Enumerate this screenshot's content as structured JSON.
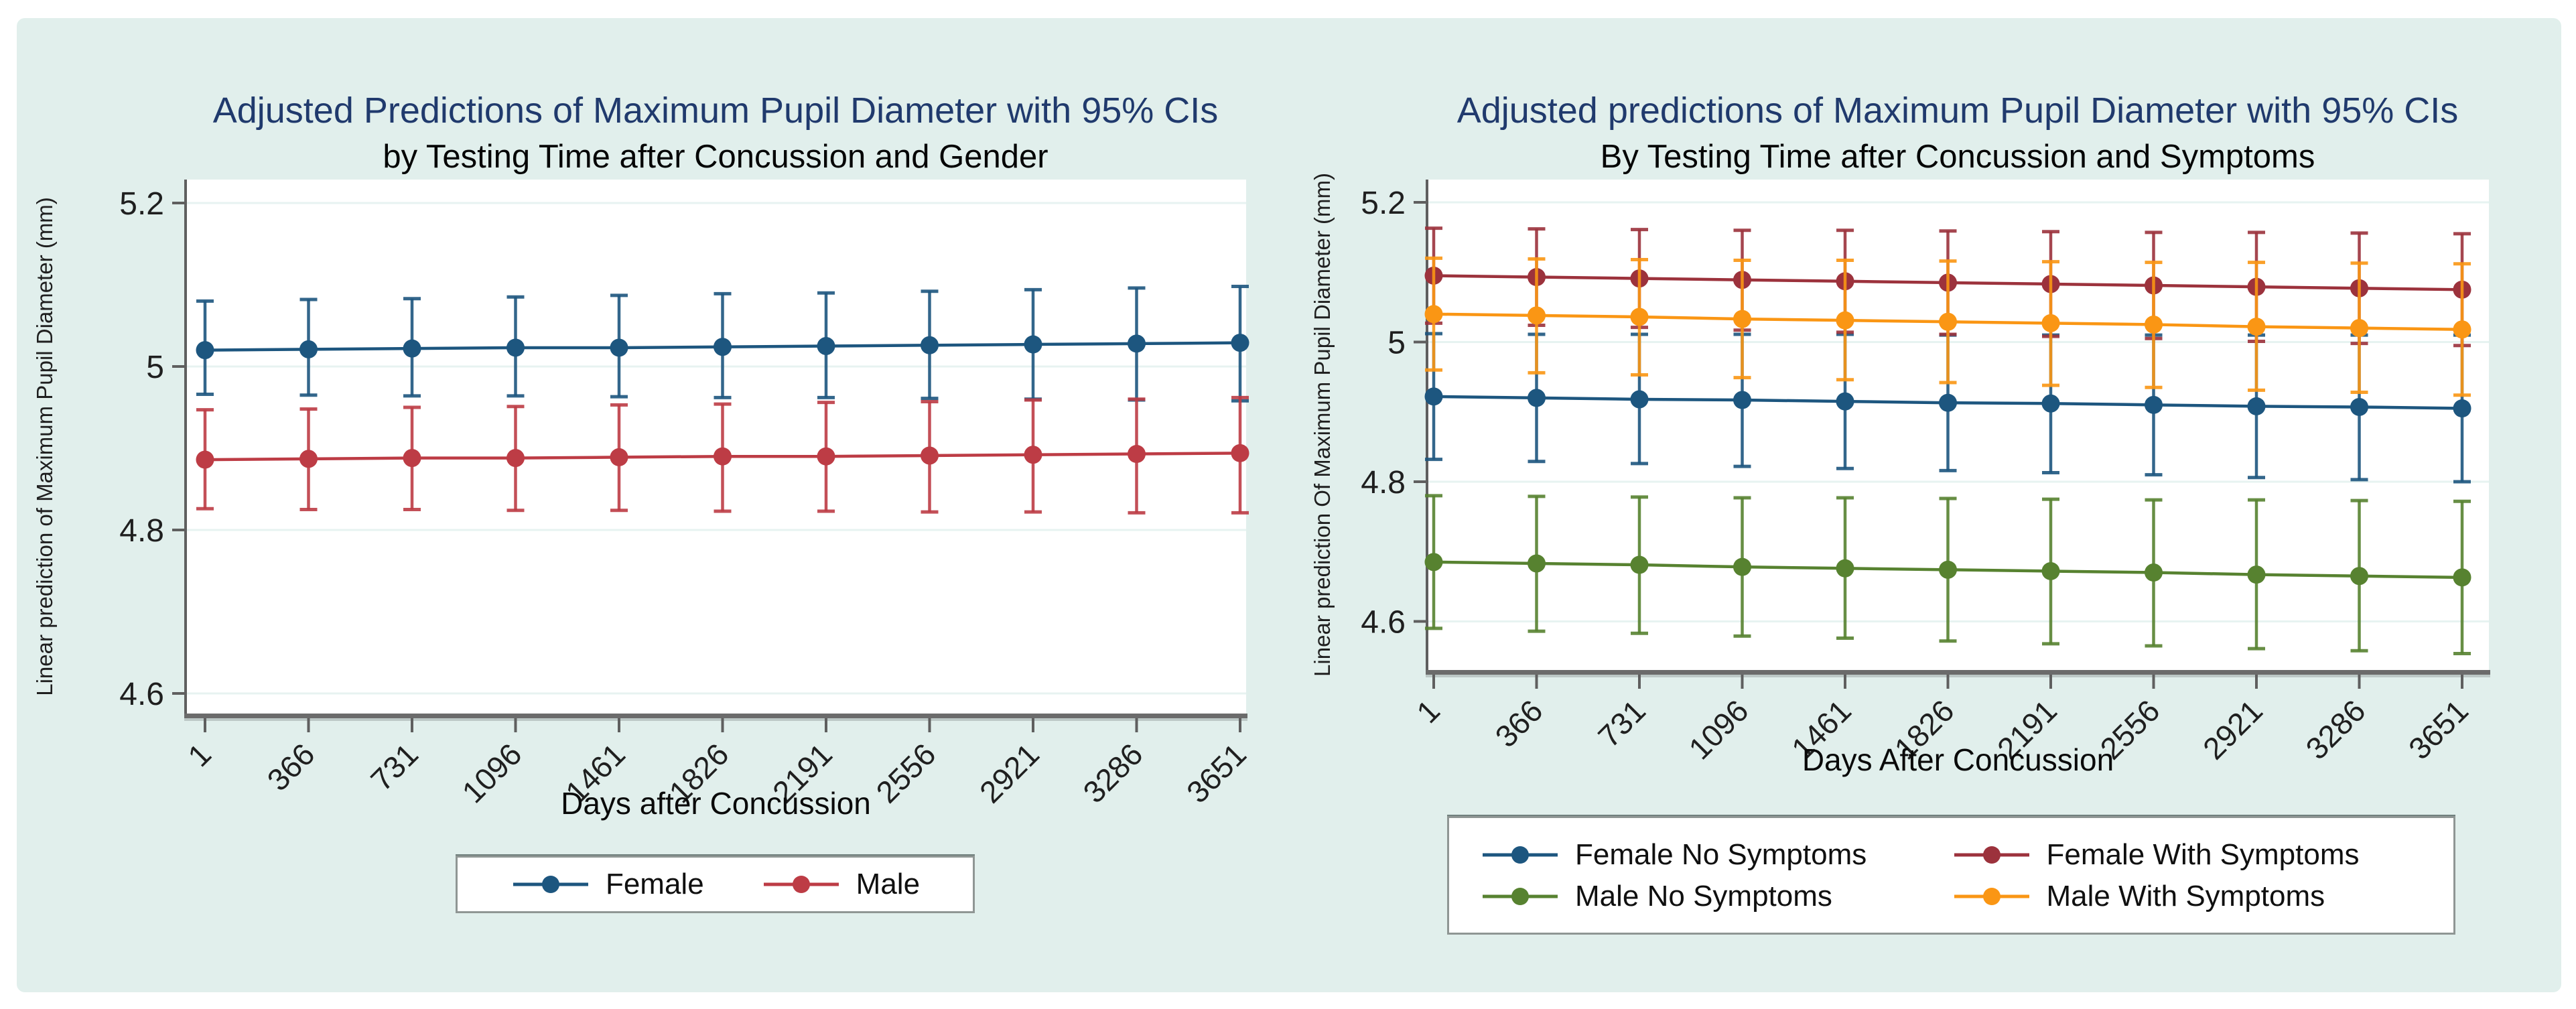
{
  "page": {
    "background": "#ffffff",
    "panel_color": "#e1efec"
  },
  "chart_data": [
    {
      "type": "line",
      "title": "Adjusted Predictions of Maximum Pupil Diameter with 95% CIs",
      "subtitle": "by Testing Time after Concussion and Gender",
      "xlabel": "Days after Concussion",
      "ylabel": "Linear prediction of Maximum Pupil Diameter (mm)",
      "x": [
        1,
        366,
        731,
        1096,
        1461,
        1826,
        2191,
        2556,
        2921,
        3286,
        3651
      ],
      "ylim": [
        4.575,
        5.229
      ],
      "yticks": [
        {
          "v": 5.2,
          "label": "5.2"
        },
        {
          "v": 5.0,
          "label": "5"
        },
        {
          "v": 4.8,
          "label": "4.8"
        },
        {
          "v": 4.6,
          "label": "4.6"
        }
      ],
      "grid": true,
      "legend_position": "bottom-center",
      "error_bars": "95% CI",
      "series": [
        {
          "name": "Female",
          "color": "#1d567f",
          "values": [
            5.02,
            5.021,
            5.022,
            5.023,
            5.023,
            5.024,
            5.025,
            5.026,
            5.027,
            5.028,
            5.029
          ],
          "ci_lower": [
            4.966,
            4.965,
            4.964,
            4.964,
            4.963,
            4.962,
            4.962,
            4.961,
            4.96,
            4.959,
            4.958
          ],
          "ci_upper": [
            5.08,
            5.082,
            5.083,
            5.085,
            5.087,
            5.089,
            5.09,
            5.092,
            5.094,
            5.096,
            5.098
          ]
        },
        {
          "name": "Male",
          "color": "#bd3c45",
          "values": [
            4.886,
            4.887,
            4.888,
            4.888,
            4.889,
            4.89,
            4.89,
            4.891,
            4.892,
            4.893,
            4.894
          ],
          "ci_lower": [
            4.826,
            4.825,
            4.825,
            4.824,
            4.824,
            4.823,
            4.823,
            4.822,
            4.822,
            4.821,
            4.821
          ],
          "ci_upper": [
            4.947,
            4.948,
            4.95,
            4.951,
            4.953,
            4.954,
            4.956,
            4.957,
            4.959,
            4.96,
            4.962
          ]
        }
      ]
    },
    {
      "type": "line",
      "title": "Adjusted predictions of Maximum Pupil Diameter with 95% CIs",
      "subtitle": "By Testing Time after Concussion and Symptoms",
      "xlabel": "Days After Concussion",
      "ylabel": "Linear prediction Of Maximum Pupil Diameter (mm)",
      "x": [
        1,
        366,
        731,
        1096,
        1461,
        1826,
        2191,
        2556,
        2921,
        3286,
        3651
      ],
      "ylim": [
        4.53,
        5.233
      ],
      "yticks": [
        {
          "v": 5.2,
          "label": "5.2"
        },
        {
          "v": 5.0,
          "label": "5"
        },
        {
          "v": 4.8,
          "label": "4.8"
        },
        {
          "v": 4.6,
          "label": "4.6"
        }
      ],
      "grid": true,
      "legend_position": "bottom-center",
      "error_bars": "95% CI",
      "series": [
        {
          "name": "Female No Symptoms",
          "color": "#1d567f",
          "values": [
            4.922,
            4.92,
            4.918,
            4.917,
            4.915,
            4.913,
            4.912,
            4.91,
            4.908,
            4.907,
            4.905
          ],
          "ci_lower": [
            4.832,
            4.829,
            4.826,
            4.822,
            4.819,
            4.816,
            4.813,
            4.81,
            4.806,
            4.803,
            4.8
          ],
          "ci_upper": [
            5.012,
            5.011,
            5.011,
            5.011,
            5.011,
            5.01,
            5.01,
            5.01,
            5.01,
            5.01,
            5.01
          ]
        },
        {
          "name": "Female With Symptoms",
          "color": "#9c323c",
          "values": [
            5.095,
            5.093,
            5.091,
            5.089,
            5.087,
            5.085,
            5.083,
            5.081,
            5.079,
            5.077,
            5.075
          ],
          "ci_lower": [
            5.027,
            5.024,
            5.021,
            5.017,
            5.014,
            5.011,
            5.008,
            5.005,
            5.001,
            4.998,
            4.995
          ],
          "ci_upper": [
            5.163,
            5.162,
            5.161,
            5.16,
            5.16,
            5.159,
            5.158,
            5.157,
            5.157,
            5.156,
            5.155
          ]
        },
        {
          "name": "Male No Symptoms",
          "color": "#578230",
          "values": [
            4.685,
            4.683,
            4.681,
            4.678,
            4.676,
            4.674,
            4.672,
            4.67,
            4.667,
            4.665,
            4.663
          ],
          "ci_lower": [
            4.59,
            4.586,
            4.583,
            4.579,
            4.576,
            4.572,
            4.568,
            4.565,
            4.561,
            4.558,
            4.554
          ],
          "ci_upper": [
            4.78,
            4.779,
            4.778,
            4.777,
            4.777,
            4.776,
            4.775,
            4.774,
            4.774,
            4.773,
            4.772
          ]
        },
        {
          "name": "Male With Symptoms",
          "color": "#fa9614",
          "values": [
            5.04,
            5.038,
            5.036,
            5.033,
            5.031,
            5.029,
            5.027,
            5.025,
            5.022,
            5.02,
            5.018
          ],
          "ci_lower": [
            4.96,
            4.956,
            4.953,
            4.949,
            4.946,
            4.942,
            4.938,
            4.935,
            4.931,
            4.928,
            4.924
          ],
          "ci_upper": [
            5.12,
            5.119,
            5.118,
            5.117,
            5.117,
            5.116,
            5.115,
            5.114,
            5.114,
            5.113,
            5.112
          ]
        }
      ]
    }
  ]
}
